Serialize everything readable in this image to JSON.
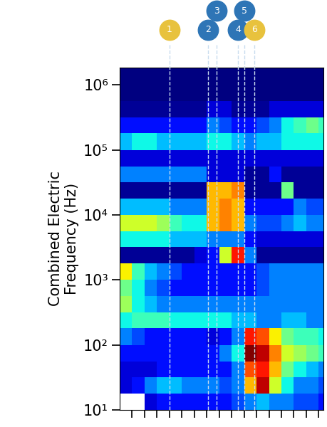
{
  "chart_data": {
    "type": "heatmap",
    "y_label": "Combined Electric\nFrequency (Hz)",
    "log": "y",
    "tick_labels": "y",
    "xlim": [
      0,
      16.4
    ],
    "xticks": [
      1,
      2,
      3,
      4,
      5,
      6,
      7,
      8,
      9,
      10,
      11,
      12,
      13,
      14,
      15,
      16
    ],
    "ylim": [
      10,
      1860000
    ],
    "yticks": [
      {
        "value": 10,
        "label": "10¹"
      },
      {
        "value": 100,
        "label": "10²"
      },
      {
        "value": 1000,
        "label": "10³"
      },
      {
        "value": 10000,
        "label": "10⁴"
      },
      {
        "value": 100000,
        "label": "10⁵"
      },
      {
        "value": 1000000,
        "label": "10⁶"
      }
    ],
    "x_edges": [
      0,
      1,
      2,
      3,
      4,
      5,
      6,
      7,
      8,
      9,
      10,
      11,
      12,
      13,
      14,
      15,
      16,
      16.4
    ],
    "y_edges": [
      10,
      18,
      32,
      56,
      100,
      180,
      320,
      560,
      1000,
      1800,
      3200,
      5600,
      10000,
      18000,
      32000,
      56000,
      100000,
      180000,
      320000,
      560000,
      1000000,
      1860000
    ],
    "cells": [
      [
        null,
        null,
        0.15,
        0.2,
        0.2,
        0.2,
        0.2,
        0.2,
        0.2,
        0.25,
        0.3,
        0.35,
        0.3,
        0.3,
        0.25,
        0.25,
        0.2
      ],
      [
        0.15,
        0.2,
        0.3,
        0.35,
        0.35,
        0.3,
        0.3,
        0.3,
        0.25,
        0.3,
        0.7,
        0.9,
        0.6,
        0.4,
        0.3,
        0.3,
        0.25
      ],
      [
        0.15,
        0.15,
        0.15,
        0.2,
        0.2,
        0.2,
        0.2,
        0.2,
        0.2,
        0.3,
        0.8,
        0.85,
        0.7,
        0.5,
        0.4,
        0.35,
        0.3
      ],
      [
        0.2,
        0.2,
        0.2,
        0.2,
        0.2,
        0.2,
        0.2,
        0.2,
        0.3,
        0.4,
        0.95,
        0.9,
        0.75,
        0.6,
        0.55,
        0.5,
        0.45
      ],
      [
        0.3,
        0.25,
        0.2,
        0.2,
        0.2,
        0.2,
        0.2,
        0.15,
        0.2,
        0.3,
        0.85,
        0.8,
        0.65,
        0.5,
        0.45,
        0.45,
        0.4
      ],
      [
        0.4,
        0.45,
        0.45,
        0.45,
        0.4,
        0.4,
        0.4,
        0.4,
        0.4,
        0.35,
        0.35,
        0.3,
        0.3,
        0.35,
        0.35,
        0.3,
        0.3
      ],
      [
        0.55,
        0.4,
        0.35,
        0.3,
        0.3,
        0.3,
        0.3,
        0.3,
        0.3,
        0.3,
        0.3,
        0.3,
        0.3,
        0.3,
        0.3,
        0.3,
        0.3
      ],
      [
        0.5,
        0.4,
        0.3,
        0.25,
        0.2,
        0.2,
        0.2,
        0.2,
        0.2,
        0.2,
        0.2,
        0.25,
        0.3,
        0.3,
        0.3,
        0.3,
        0.3
      ],
      [
        0.65,
        0.45,
        0.35,
        0.3,
        0.25,
        0.2,
        0.2,
        0.2,
        0.2,
        0.2,
        0.2,
        0.25,
        0.3,
        0.3,
        0.3,
        0.3,
        0.3
      ],
      [
        0.1,
        0.1,
        0.1,
        0.1,
        0.1,
        0.1,
        0.15,
        0.2,
        0.6,
        0.85,
        0.3,
        0.1,
        0.1,
        0.1,
        0.1,
        0.1,
        0.1
      ],
      [
        0.4,
        0.4,
        0.4,
        0.4,
        0.35,
        0.35,
        0.35,
        0.3,
        0.3,
        0.3,
        0.2,
        0.15,
        0.15,
        0.15,
        0.15,
        0.15,
        0.15
      ],
      [
        0.6,
        0.6,
        0.6,
        0.55,
        0.45,
        0.4,
        0.4,
        0.7,
        0.75,
        0.7,
        0.3,
        0.25,
        0.25,
        0.3,
        0.35,
        0.3,
        0.3
      ],
      [
        0.35,
        0.35,
        0.35,
        0.35,
        0.3,
        0.3,
        0.3,
        0.7,
        0.75,
        0.7,
        0.2,
        0.2,
        0.2,
        0.2,
        0.3,
        0.25,
        0.25
      ],
      [
        0.1,
        0.1,
        0.1,
        0.1,
        0.1,
        0.1,
        0.1,
        0.7,
        0.7,
        0.75,
        0.1,
        0.1,
        0.1,
        0.5,
        0.1,
        0.1,
        0.1
      ],
      [
        0.3,
        0.3,
        0.3,
        0.3,
        0.3,
        0.3,
        0.3,
        0.15,
        0.15,
        0.15,
        0.1,
        0.1,
        0.2,
        0.1,
        0.1,
        0.1,
        0.1
      ],
      [
        0.15,
        0.15,
        0.15,
        0.15,
        0.15,
        0.15,
        0.15,
        0.15,
        0.15,
        0.15,
        0.15,
        0.15,
        0.15,
        0.15,
        0.15,
        0.15,
        0.15
      ],
      [
        0.35,
        0.4,
        0.4,
        0.35,
        0.35,
        0.35,
        0.35,
        0.4,
        0.4,
        0.35,
        0.3,
        0.35,
        0.35,
        0.4,
        0.4,
        0.4,
        0.4
      ],
      [
        0.2,
        0.2,
        0.2,
        0.2,
        0.2,
        0.2,
        0.2,
        0.3,
        0.25,
        0.2,
        0.2,
        0.25,
        0.3,
        0.4,
        0.45,
        0.5,
        0.45
      ],
      [
        0.1,
        0.1,
        0.1,
        0.1,
        0.1,
        0.1,
        0.1,
        0.15,
        0.15,
        0.1,
        0.1,
        0.1,
        0.15,
        0.15,
        0.15,
        0.15,
        0.15
      ],
      [
        0.08,
        0.08,
        0.08,
        0.08,
        0.08,
        0.08,
        0.08,
        0.08,
        0.08,
        0.08,
        0.08,
        0.08,
        0.08,
        0.08,
        0.08,
        0.08,
        0.08
      ],
      [
        0.08,
        0.08,
        0.08,
        0.08,
        0.08,
        0.08,
        0.08,
        0.08,
        0.08,
        0.08,
        0.08,
        0.08,
        0.08,
        0.08,
        0.08,
        0.08,
        0.08
      ]
    ],
    "events": [
      {
        "label": "1",
        "x": 4.0,
        "color": "#e8c23d"
      },
      {
        "label": "2",
        "x": 7.1,
        "color": "#2e75b6"
      },
      {
        "label": "3",
        "x": 7.8,
        "color": "#2e75b6"
      },
      {
        "label": "4",
        "x": 9.5,
        "color": "#2e75b6"
      },
      {
        "label": "5",
        "x": 10.0,
        "color": "#2e75b6"
      },
      {
        "label": "6",
        "x": 10.8,
        "color": "#e8c23d"
      }
    ]
  }
}
